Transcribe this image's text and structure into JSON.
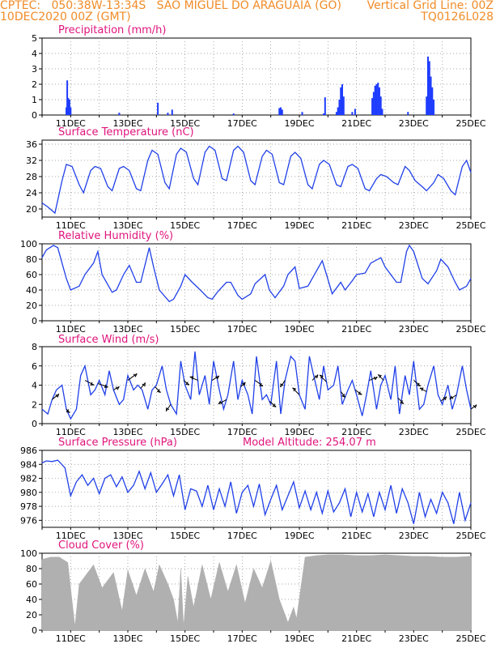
{
  "header": {
    "line1": "CPTEC:   050:38W-13:34S   SAO MIGUEL DO ARAGUAIA (GO)",
    "line2": "10DEC2020 00Z (GMT)",
    "right1": "Vertical Grid Line: 00Z",
    "right2": "TQ0126L028"
  },
  "x_tick_labels": [
    "11DEC",
    "13DEC",
    "15DEC",
    "17DEC",
    "19DEC",
    "21DEC",
    "23DEC",
    "25DEC"
  ],
  "colors": {
    "line": "#2040e8",
    "bar": "#1e3cff",
    "cloud": "#b0b0b0",
    "title": "#e0147c",
    "header": "#f08c28"
  },
  "chart_data": [
    {
      "type": "bar",
      "title": "Precipitation (mm/h)",
      "x_range_days": [
        10,
        25
      ],
      "ylim": [
        0,
        5
      ],
      "yticks": [
        0,
        1,
        2,
        3,
        4,
        5
      ],
      "x": [
        10.85,
        10.88,
        10.92,
        10.96,
        11.0,
        12.7,
        14.05,
        14.4,
        14.55,
        16.7,
        18.3,
        18.35,
        18.4,
        19.1,
        19.85,
        19.9,
        20.3,
        20.35,
        20.4,
        20.45,
        20.5,
        20.55,
        20.85,
        20.95,
        21.55,
        21.6,
        21.65,
        21.7,
        21.75,
        21.8,
        21.85,
        21.9,
        22.8,
        23.45,
        23.5,
        23.55,
        23.6,
        23.65,
        23.7
      ],
      "values": [
        0.5,
        2.25,
        1.1,
        1.0,
        0.5,
        0.15,
        0.8,
        0.15,
        0.35,
        0.1,
        0.45,
        0.5,
        0.35,
        0.2,
        0.1,
        1.15,
        0.2,
        0.5,
        1.0,
        1.8,
        2.0,
        1.2,
        0.2,
        0.4,
        1.1,
        1.5,
        1.9,
        2.0,
        2.1,
        1.8,
        1.2,
        0.4,
        0.2,
        1.2,
        3.8,
        3.5,
        2.5,
        1.8,
        1.0
      ]
    },
    {
      "type": "line",
      "title": "Surface Temperature (nC)",
      "x_range_days": [
        10,
        25
      ],
      "ylim": [
        18,
        37
      ],
      "yticks": [
        20,
        24,
        28,
        32,
        36
      ],
      "x": [
        10.0,
        10.2,
        10.45,
        10.7,
        10.85,
        11.05,
        11.3,
        11.45,
        11.7,
        11.85,
        12.05,
        12.3,
        12.45,
        12.7,
        12.85,
        13.05,
        13.3,
        13.45,
        13.7,
        13.85,
        14.05,
        14.3,
        14.45,
        14.7,
        14.85,
        15.05,
        15.3,
        15.45,
        15.7,
        15.85,
        16.05,
        16.3,
        16.45,
        16.7,
        16.85,
        17.05,
        17.3,
        17.45,
        17.7,
        17.85,
        18.05,
        18.3,
        18.45,
        18.7,
        18.85,
        19.05,
        19.3,
        19.45,
        19.7,
        19.85,
        20.05,
        20.3,
        20.45,
        20.7,
        20.85,
        21.05,
        21.3,
        21.45,
        21.7,
        21.85,
        22.05,
        22.3,
        22.45,
        22.7,
        22.85,
        23.05,
        23.3,
        23.45,
        23.7,
        23.85,
        24.05,
        24.3,
        24.45,
        24.7,
        24.85,
        25.0
      ],
      "values": [
        21.5,
        20.5,
        19.0,
        27.0,
        31.0,
        30.5,
        26.0,
        24.0,
        29.5,
        30.5,
        30.0,
        25.5,
        24.5,
        30.0,
        30.5,
        29.5,
        25.0,
        24.5,
        32.0,
        34.5,
        33.5,
        26.5,
        25.0,
        33.5,
        35.0,
        34.0,
        27.5,
        26.0,
        34.0,
        35.5,
        34.5,
        27.5,
        27.0,
        34.5,
        35.5,
        34.0,
        27.0,
        26.0,
        33.0,
        34.5,
        33.5,
        26.5,
        26.0,
        33.0,
        34.0,
        32.5,
        26.0,
        25.0,
        31.0,
        32.0,
        31.0,
        26.0,
        25.5,
        30.5,
        31.0,
        30.0,
        25.0,
        24.5,
        27.5,
        28.5,
        28.0,
        26.5,
        26.0,
        30.5,
        29.5,
        27.0,
        25.5,
        24.5,
        26.5,
        28.5,
        27.5,
        24.5,
        23.5,
        30.5,
        32.0,
        29.0
      ]
    },
    {
      "type": "line",
      "title": "Relative Humidity (%)",
      "x_range_days": [
        10,
        25
      ],
      "ylim": [
        0,
        100
      ],
      "yticks": [
        0,
        20,
        40,
        60,
        80,
        100
      ],
      "x": [
        10.0,
        10.15,
        10.4,
        10.55,
        10.85,
        11.0,
        11.3,
        11.5,
        11.8,
        11.95,
        12.1,
        12.45,
        12.6,
        12.85,
        13.05,
        13.3,
        13.45,
        13.75,
        13.9,
        14.1,
        14.45,
        14.6,
        14.85,
        15.0,
        15.25,
        15.45,
        15.8,
        15.95,
        16.15,
        16.45,
        16.6,
        16.85,
        17.0,
        17.3,
        17.45,
        17.8,
        17.95,
        18.15,
        18.45,
        18.6,
        18.85,
        19.0,
        19.3,
        19.45,
        19.8,
        19.95,
        20.15,
        20.45,
        20.6,
        20.85,
        21.0,
        21.3,
        21.5,
        21.85,
        22.0,
        22.4,
        22.55,
        22.75,
        22.85,
        23.0,
        23.3,
        23.5,
        23.8,
        23.95,
        24.2,
        24.45,
        24.6,
        24.85,
        25.0
      ],
      "values": [
        82,
        92,
        98,
        95,
        55,
        40,
        45,
        60,
        75,
        90,
        60,
        37,
        40,
        60,
        72,
        50,
        50,
        95,
        70,
        40,
        25,
        28,
        45,
        60,
        50,
        43,
        30,
        28,
        38,
        50,
        50,
        33,
        28,
        35,
        48,
        60,
        40,
        30,
        45,
        60,
        70,
        42,
        45,
        55,
        78,
        60,
        35,
        50,
        40,
        52,
        60,
        62,
        75,
        82,
        70,
        50,
        50,
        90,
        98,
        90,
        55,
        48,
        65,
        80,
        70,
        50,
        40,
        45,
        55
      ]
    },
    {
      "type": "line",
      "title": "Surface Wind (m/s)",
      "x_range_days": [
        10,
        25
      ],
      "ylim": [
        0,
        8
      ],
      "yticks": [
        0,
        2,
        4,
        6,
        8
      ],
      "x": [
        10.0,
        10.2,
        10.35,
        10.5,
        10.7,
        10.85,
        11.0,
        11.2,
        11.35,
        11.5,
        11.7,
        11.85,
        12.0,
        12.2,
        12.35,
        12.5,
        12.7,
        12.85,
        13.0,
        13.2,
        13.35,
        13.5,
        13.7,
        13.85,
        14.0,
        14.2,
        14.35,
        14.5,
        14.7,
        14.85,
        15.0,
        15.2,
        15.35,
        15.5,
        15.7,
        15.85,
        16.0,
        16.2,
        16.35,
        16.5,
        16.7,
        16.85,
        17.0,
        17.2,
        17.35,
        17.5,
        17.7,
        17.85,
        18.0,
        18.2,
        18.35,
        18.5,
        18.7,
        18.85,
        19.0,
        19.2,
        19.35,
        19.5,
        19.7,
        19.85,
        20.0,
        20.2,
        20.35,
        20.5,
        20.7,
        20.85,
        21.0,
        21.2,
        21.35,
        21.5,
        21.7,
        21.85,
        22.0,
        22.2,
        22.35,
        22.5,
        22.7,
        22.85,
        23.0,
        23.2,
        23.35,
        23.5,
        23.7,
        23.85,
        24.0,
        24.2,
        24.35,
        24.5,
        24.7,
        24.85,
        25.0
      ],
      "values": [
        1.5,
        1.0,
        2.5,
        3.5,
        4.0,
        1.5,
        0.5,
        1.5,
        5.0,
        6.0,
        3.0,
        3.5,
        4.5,
        3.0,
        5.5,
        3.5,
        2.0,
        2.5,
        5.0,
        3.5,
        4.0,
        3.5,
        1.5,
        3.5,
        4.0,
        6.0,
        3.5,
        2.0,
        1.0,
        6.5,
        4.0,
        2.5,
        7.5,
        3.0,
        5.0,
        2.0,
        6.5,
        3.5,
        1.5,
        3.0,
        6.5,
        2.5,
        4.5,
        3.0,
        1.0,
        7.0,
        2.5,
        3.0,
        2.0,
        6.5,
        1.0,
        4.5,
        7.0,
        6.5,
        3.0,
        1.5,
        7.0,
        5.0,
        2.5,
        6.0,
        3.5,
        4.0,
        6.0,
        2.0,
        3.5,
        4.5,
        3.0,
        0.8,
        3.0,
        5.5,
        1.5,
        4.0,
        5.0,
        2.5,
        6.0,
        1.0,
        5.0,
        3.0,
        6.5,
        1.5,
        2.0,
        4.0,
        6.0,
        3.0,
        2.0,
        4.0,
        1.5,
        3.0,
        6.0,
        3.5,
        1.5
      ]
    },
    {
      "type": "line",
      "title": "Surface Pressure (hPa)",
      "annotation": "Model Altitude: 254.07 m",
      "x_range_days": [
        10,
        25
      ],
      "ylim": [
        975,
        986
      ],
      "yticks": [
        976,
        978,
        980,
        982,
        984,
        986
      ],
      "x": [
        10.0,
        10.15,
        10.35,
        10.55,
        10.8,
        11.0,
        11.2,
        11.4,
        11.6,
        11.8,
        12.0,
        12.2,
        12.4,
        12.6,
        12.8,
        13.0,
        13.2,
        13.4,
        13.6,
        13.8,
        14.0,
        14.2,
        14.4,
        14.6,
        14.8,
        15.0,
        15.2,
        15.4,
        15.6,
        15.8,
        16.0,
        16.2,
        16.4,
        16.6,
        16.8,
        17.0,
        17.2,
        17.4,
        17.6,
        17.8,
        18.0,
        18.2,
        18.4,
        18.6,
        18.8,
        19.0,
        19.2,
        19.4,
        19.6,
        19.8,
        20.0,
        20.2,
        20.4,
        20.6,
        20.8,
        21.0,
        21.2,
        21.4,
        21.6,
        21.8,
        22.0,
        22.2,
        22.4,
        22.6,
        22.8,
        23.0,
        23.2,
        23.4,
        23.6,
        23.8,
        24.0,
        24.2,
        24.4,
        24.6,
        24.8,
        25.0
      ],
      "values": [
        984.2,
        984.5,
        984.4,
        984.6,
        983.5,
        979.5,
        981.5,
        982.5,
        981.0,
        982.0,
        979.8,
        982.0,
        982.5,
        980.8,
        982.2,
        980.0,
        981.0,
        983.0,
        980.5,
        982.8,
        980.0,
        981.2,
        982.5,
        979.5,
        982.5,
        977.5,
        980.5,
        980.2,
        978.0,
        981.0,
        977.5,
        980.5,
        978.0,
        981.5,
        977.0,
        980.0,
        981.0,
        978.0,
        981.2,
        976.8,
        979.0,
        981.0,
        977.5,
        979.5,
        981.5,
        977.8,
        980.2,
        977.5,
        980.0,
        977.0,
        980.2,
        977.2,
        978.5,
        980.5,
        976.5,
        980.0,
        977.2,
        979.8,
        976.5,
        980.0,
        977.5,
        981.0,
        977.0,
        980.5,
        978.5,
        975.5,
        980.0,
        976.5,
        979.0,
        977.0,
        980.0,
        978.5,
        975.5,
        980.0,
        976.0,
        978.5
      ]
    },
    {
      "type": "area",
      "title": "Cloud Cover (%)",
      "x_range_days": [
        10,
        25
      ],
      "ylim": [
        0,
        100
      ],
      "yticks": [
        0,
        20,
        40,
        60,
        80,
        100
      ],
      "x": [
        10.0,
        10.3,
        10.6,
        10.9,
        11.15,
        11.3,
        11.5,
        11.8,
        12.1,
        12.5,
        12.8,
        13.0,
        13.3,
        13.6,
        13.9,
        14.1,
        14.4,
        14.6,
        14.75,
        14.85,
        14.95,
        15.1,
        15.3,
        15.6,
        15.9,
        16.2,
        16.5,
        16.8,
        17.1,
        17.4,
        17.7,
        18.0,
        18.3,
        18.6,
        18.8,
        18.9,
        19.2,
        19.6,
        20.0,
        20.5,
        21.0,
        21.5,
        22.0,
        22.5,
        23.0,
        23.5,
        24.0,
        24.5,
        25.0
      ],
      "values": [
        92,
        95,
        95,
        88,
        5,
        60,
        70,
        85,
        55,
        75,
        25,
        78,
        45,
        80,
        50,
        85,
        60,
        40,
        10,
        80,
        5,
        70,
        30,
        85,
        40,
        88,
        50,
        85,
        35,
        80,
        55,
        90,
        40,
        10,
        30,
        15,
        95,
        97,
        98,
        98,
        97,
        97,
        98,
        97,
        96,
        96,
        95,
        95,
        96
      ]
    }
  ],
  "wind_vectors": {
    "x": [
      10.35,
      10.85,
      11.5,
      11.95,
      12.5,
      13.0,
      13.45,
      13.95,
      14.5,
      14.95,
      15.45,
      15.95,
      16.45,
      16.95,
      17.45,
      17.95,
      18.5,
      19.0,
      19.45,
      19.95,
      20.45,
      20.95,
      21.45,
      21.95,
      22.45,
      23.0,
      23.45,
      23.95,
      24.5,
      25.0
    ],
    "dx": [
      0.6,
      0.3,
      0.8,
      0.9,
      0.5,
      0.8,
      0.4,
      0.5,
      -0.4,
      0.5,
      -0.7,
      0.6,
      -0.7,
      0.4,
      0.7,
      0.6,
      -0.4,
      -0.6,
      0.5,
      -0.6,
      0.4,
      0.6,
      0.7,
      -0.5,
      0.5,
      0.6,
      -0.6,
      0.5,
      -0.6,
      0.5
    ],
    "dy": [
      0.5,
      -0.3,
      -0.4,
      -0.3,
      0.3,
      0.6,
      0.5,
      -0.5,
      -0.6,
      -0.4,
      0.3,
      0.4,
      -0.4,
      0.4,
      -0.5,
      -0.5,
      -0.6,
      0.6,
      0.5,
      0.6,
      -0.5,
      -0.4,
      0.3,
      0.5,
      -0.5,
      -0.5,
      0.3,
      0.4,
      -0.4,
      0.4
    ]
  }
}
